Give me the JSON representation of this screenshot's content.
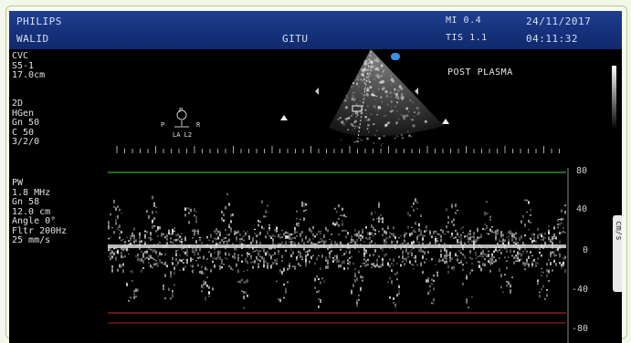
{
  "header": {
    "brand": "PHILIPS",
    "patient": "WALID",
    "operator": "GITU",
    "mi": "MI 0.4",
    "tis": "TIS 1.1",
    "date": "24/11/2017",
    "time": "04:11:32"
  },
  "left_panel": {
    "preset": "CVC\nS5-1\n17.0cm",
    "mode_2d": "2D\nHGen\nGn 50\nC 50\n3/2/0",
    "mode_pw": "PW\n1.8 MHz\nGn 58\n12.0 cm\nAngle 0°\nFltr 200Hz\n25 mm/s"
  },
  "image_label": "POST PLASMA",
  "body_marker": {
    "top": "P",
    "left": "P",
    "right": "R",
    "bottom": "LA L2"
  },
  "velocity_scale": {
    "unit": "cm/s",
    "ticks": [
      "80",
      "40",
      "0",
      "-40",
      "-80"
    ]
  },
  "colors": {
    "header_blue": "#15307a",
    "baseline_green": "#2e8b2e",
    "limit_red": "#b02020",
    "probe_marker": "#3d8fe6"
  }
}
